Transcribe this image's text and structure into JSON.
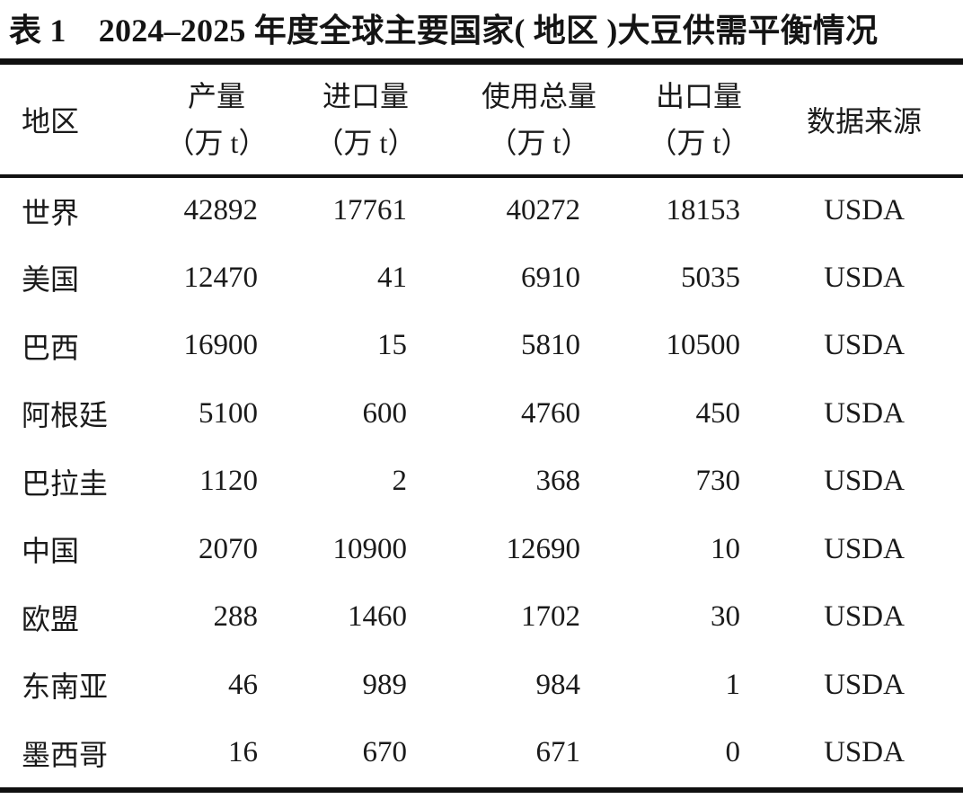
{
  "title": "表 1　2024–2025 年度全球主要国家( 地区 )大豆供需平衡情况",
  "colors": {
    "ink": "#1a1a1a",
    "rule": "#101010"
  },
  "table": {
    "header": {
      "region": "地区",
      "columns": [
        {
          "label": "产量",
          "unit": "（万 t）"
        },
        {
          "label": "进口量",
          "unit": "（万 t）"
        },
        {
          "label": "使用总量",
          "unit": "（万 t）"
        },
        {
          "label": "出口量",
          "unit": "（万 t）"
        }
      ],
      "source": "数据来源"
    },
    "rows": [
      {
        "region": "世界",
        "production": "42892",
        "imports": "17761",
        "total_use": "40272",
        "exports": "18153",
        "source": "USDA"
      },
      {
        "region": "美国",
        "production": "12470",
        "imports": "41",
        "total_use": "6910",
        "exports": "5035",
        "source": "USDA"
      },
      {
        "region": "巴西",
        "production": "16900",
        "imports": "15",
        "total_use": "5810",
        "exports": "10500",
        "source": "USDA"
      },
      {
        "region": "阿根廷",
        "production": "5100",
        "imports": "600",
        "total_use": "4760",
        "exports": "450",
        "source": "USDA"
      },
      {
        "region": "巴拉圭",
        "production": "1120",
        "imports": "2",
        "total_use": "368",
        "exports": "730",
        "source": "USDA"
      },
      {
        "region": "中国",
        "production": "2070",
        "imports": "10900",
        "total_use": "12690",
        "exports": "10",
        "source": "USDA"
      },
      {
        "region": "欧盟",
        "production": "288",
        "imports": "1460",
        "total_use": "1702",
        "exports": "30",
        "source": "USDA"
      },
      {
        "region": "东南亚",
        "production": "46",
        "imports": "989",
        "total_use": "984",
        "exports": "1",
        "source": "USDA"
      },
      {
        "region": "墨西哥",
        "production": "16",
        "imports": "670",
        "total_use": "671",
        "exports": "0",
        "source": "USDA"
      }
    ]
  }
}
